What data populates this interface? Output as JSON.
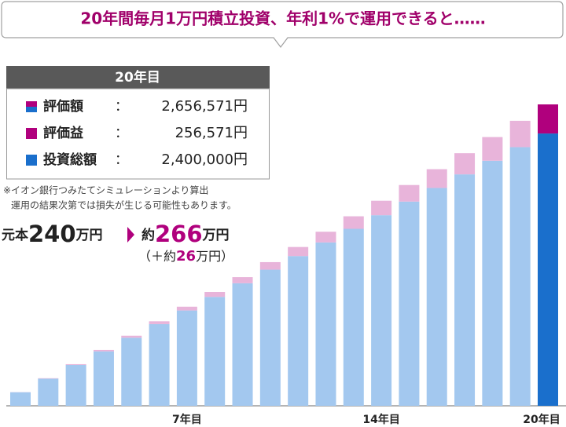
{
  "chart_data": {
    "type": "stacked-bar",
    "title": "20年間毎月1万円積立投資、年利1%で運用できると……",
    "categories": [
      null,
      null,
      null,
      null,
      null,
      null,
      "7年目",
      null,
      null,
      null,
      null,
      null,
      null,
      "14年目",
      null,
      null,
      null,
      null,
      null,
      "20年目"
    ],
    "series": [
      {
        "name": "投資総額",
        "color": "#a3c8ef",
        "highlight_color": "#1a6fcc",
        "values": [
          120000,
          240000,
          360000,
          480000,
          600000,
          720000,
          840000,
          960000,
          1080000,
          1200000,
          1320000,
          1440000,
          1560000,
          1680000,
          1800000,
          1920000,
          2040000,
          2160000,
          2280000,
          2400000
        ]
      },
      {
        "name": "評価益",
        "color": "#e8b4da",
        "highlight_color": "#b0007d",
        "values": [
          1000,
          3300,
          6900,
          11600,
          17600,
          24900,
          33400,
          43100,
          54100,
          66300,
          79700,
          94400,
          110300,
          127500,
          145900,
          165600,
          186500,
          208600,
          232000,
          256571
        ]
      }
    ],
    "summary": {
      "header": "20年目",
      "total_label": "評価額",
      "separator": "：",
      "total": "2,656,571円",
      "gain": "256,571円",
      "principal": "2,400,000円"
    },
    "note": [
      "※イオン銀行つみたてシミュレーションより算出",
      "運用の結果次第では損失が生じる可能性もあります。"
    ],
    "annotation": {
      "principal_prefix": "元本",
      "principal": "240",
      "unit": "万円",
      "total_prefix": "約",
      "total": "266",
      "gain_prefix": "（＋約",
      "gain": "26",
      "gain_suffix": "万円）"
    }
  }
}
